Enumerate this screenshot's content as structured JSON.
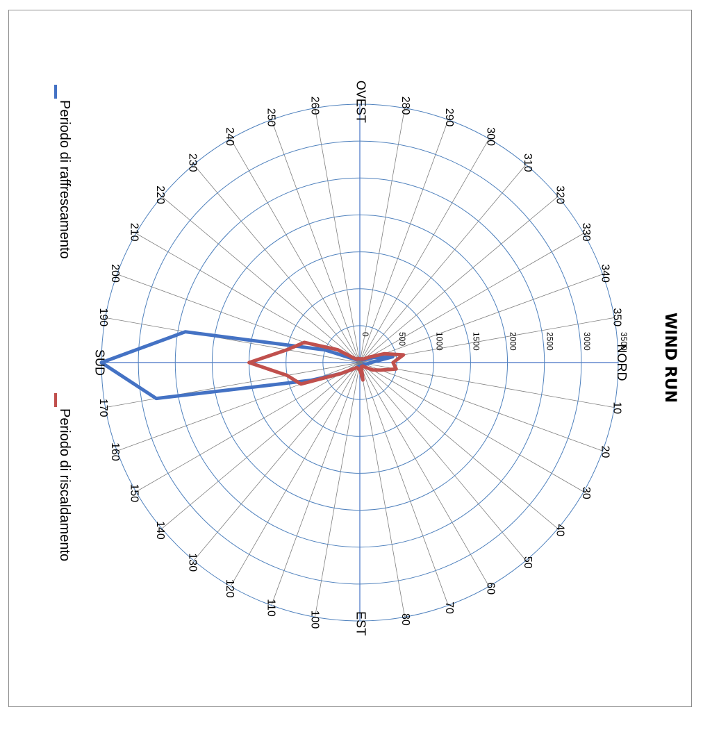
{
  "chart_data": {
    "type": "radar",
    "title": "WIND RUN",
    "direction_labels": {
      "0": "NORD",
      "90": "EST",
      "180": "SUD",
      "270": "OVEST"
    },
    "angle_labels": [
      "NORD",
      "10",
      "20",
      "30",
      "40",
      "50",
      "60",
      "70",
      "80",
      "EST",
      "100",
      "110",
      "120",
      "130",
      "140",
      "150",
      "160",
      "170",
      "SUD",
      "190",
      "200",
      "210",
      "220",
      "230",
      "240",
      "250",
      "260",
      "OVEST",
      "280",
      "290",
      "300",
      "310",
      "320",
      "330",
      "340",
      "350"
    ],
    "angles": [
      0,
      10,
      20,
      30,
      40,
      50,
      60,
      70,
      80,
      90,
      100,
      110,
      120,
      130,
      140,
      150,
      160,
      170,
      180,
      190,
      200,
      210,
      220,
      230,
      240,
      250,
      260,
      270,
      280,
      290,
      300,
      310,
      320,
      330,
      340,
      350
    ],
    "radial_ticks": [
      "0",
      "500",
      "1000",
      "1500",
      "2000",
      "2500",
      "3000",
      "3500"
    ],
    "rlim": [
      0,
      3500
    ],
    "legend_position": "left",
    "series": [
      {
        "name": "Periodo di raffrescamento",
        "color": "#4472c4",
        "values": [
          150,
          100,
          70,
          60,
          60,
          50,
          50,
          50,
          50,
          50,
          50,
          60,
          80,
          100,
          150,
          300,
          700,
          2800,
          3500,
          2400,
          500,
          100,
          60,
          60,
          50,
          50,
          50,
          50,
          50,
          50,
          50,
          50,
          60,
          80,
          200,
          450
        ]
      },
      {
        "name": "Periodo di riscaldamento",
        "color": "#c0504d",
        "values": [
          450,
          500,
          300,
          200,
          100,
          60,
          60,
          60,
          240,
          90,
          90,
          80,
          80,
          100,
          150,
          300,
          850,
          1000,
          1500,
          1000,
          800,
          350,
          80,
          60,
          60,
          60,
          50,
          50,
          50,
          50,
          60,
          60,
          80,
          150,
          350,
          600
        ]
      }
    ]
  }
}
